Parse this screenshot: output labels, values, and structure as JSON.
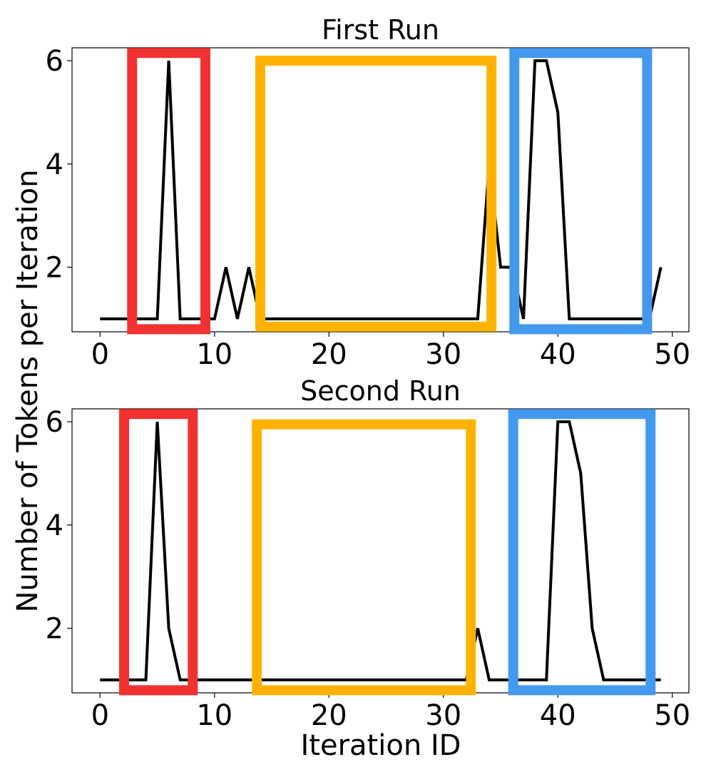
{
  "figure": {
    "ylabel": "Number of Tokens per Iteration",
    "xlabel": "Iteration ID"
  },
  "chart_data": [
    {
      "type": "line",
      "title": "First Run",
      "xlabel": "",
      "ylabel": "Number of Tokens per Iteration",
      "xlim": [
        -2.45,
        51.45
      ],
      "ylim": [
        0.75,
        6.25
      ],
      "xticks": [
        0,
        10,
        20,
        30,
        40,
        50
      ],
      "yticks": [
        2,
        4,
        6
      ],
      "grid": false,
      "series": [
        {
          "name": "tokens",
          "color": "#000000",
          "x": [
            0,
            1,
            2,
            3,
            4,
            5,
            6,
            7,
            8,
            9,
            10,
            11,
            12,
            13,
            14,
            15,
            16,
            17,
            18,
            19,
            20,
            21,
            22,
            23,
            24,
            25,
            26,
            27,
            28,
            29,
            30,
            31,
            32,
            33,
            34,
            35,
            36,
            37,
            38,
            39,
            40,
            41,
            42,
            43,
            44,
            45,
            46,
            47,
            48,
            49
          ],
          "y": [
            1,
            1,
            1,
            1,
            1,
            1,
            6,
            1,
            1,
            1,
            1,
            2,
            1,
            2,
            1,
            1,
            1,
            1,
            1,
            1,
            1,
            1,
            1,
            1,
            1,
            1,
            1,
            1,
            1,
            1,
            1,
            1,
            1,
            1,
            4,
            2,
            2,
            1,
            6,
            6,
            5,
            1,
            1,
            1,
            1,
            1,
            1,
            1,
            1,
            2
          ]
        }
      ],
      "highlights": [
        {
          "name": "red",
          "color": "#f23131",
          "x0": 2.8,
          "x1": 9.2,
          "y0": 0.8,
          "y1": 6.15
        },
        {
          "name": "orange",
          "color": "#ffb300",
          "x0": 14.0,
          "x1": 34.2,
          "y0": 0.85,
          "y1": 6.0
        },
        {
          "name": "blue",
          "color": "#4499ee",
          "x0": 36.2,
          "x1": 47.8,
          "y0": 0.8,
          "y1": 6.15
        }
      ]
    },
    {
      "type": "line",
      "title": "Second Run",
      "xlabel": "Iteration ID",
      "ylabel": "Number of Tokens per Iteration",
      "xlim": [
        -2.45,
        51.45
      ],
      "ylim": [
        0.75,
        6.25
      ],
      "xticks": [
        0,
        10,
        20,
        30,
        40,
        50
      ],
      "yticks": [
        2,
        4,
        6
      ],
      "grid": false,
      "series": [
        {
          "name": "tokens",
          "color": "#000000",
          "x": [
            0,
            1,
            2,
            3,
            4,
            5,
            6,
            7,
            8,
            9,
            10,
            11,
            12,
            13,
            14,
            15,
            16,
            17,
            18,
            19,
            20,
            21,
            22,
            23,
            24,
            25,
            26,
            27,
            28,
            29,
            30,
            31,
            32,
            33,
            34,
            35,
            36,
            37,
            38,
            39,
            40,
            41,
            42,
            43,
            44,
            45,
            46,
            47,
            48,
            49
          ],
          "y": [
            1,
            1,
            1,
            1,
            1,
            6,
            2,
            1,
            1,
            1,
            1,
            1,
            1,
            1,
            1,
            1,
            1,
            1,
            1,
            1,
            1,
            1,
            1,
            1,
            1,
            1,
            1,
            1,
            1,
            1,
            1,
            1,
            1,
            2,
            1,
            1,
            1,
            1,
            1,
            1,
            6,
            6,
            5,
            2,
            1,
            1,
            1,
            1,
            1,
            1
          ]
        }
      ],
      "highlights": [
        {
          "name": "red",
          "color": "#f23131",
          "x0": 2.1,
          "x1": 8.1,
          "y0": 0.8,
          "y1": 6.15
        },
        {
          "name": "orange",
          "color": "#ffb300",
          "x0": 13.7,
          "x1": 32.4,
          "y0": 0.8,
          "y1": 5.95
        },
        {
          "name": "blue",
          "color": "#4499ee",
          "x0": 36.1,
          "x1": 48.1,
          "y0": 0.8,
          "y1": 6.15
        }
      ]
    }
  ]
}
